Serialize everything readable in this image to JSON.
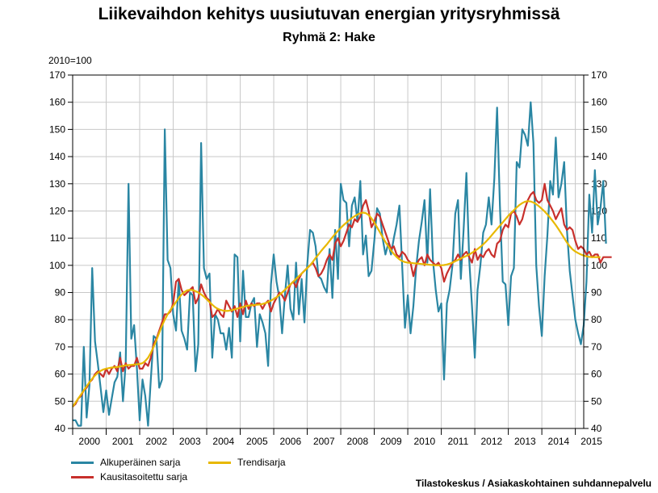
{
  "chart_data": {
    "type": "line",
    "title": "Liikevaihdon kehitys uusiutuvan energian yritysryhmissä",
    "subtitle": "Ryhmä 2: Hake",
    "ylabel": "2010=100",
    "ylim": [
      40,
      170
    ],
    "yticks": [
      "40",
      "50",
      "60",
      "70",
      "80",
      "90",
      "100",
      "110",
      "120",
      "130",
      "140",
      "150",
      "160",
      "170"
    ],
    "xlim": [
      2000,
      2015.25
    ],
    "year_labels": [
      "2000",
      "2001",
      "2002",
      "2003",
      "2004",
      "2005",
      "2006",
      "2007",
      "2008",
      "2009",
      "2010",
      "2011",
      "2012",
      "2013",
      "2014",
      "2015"
    ],
    "grid": true,
    "legend_position": "bottom-left",
    "start": 2000,
    "step": 0.08333,
    "series": [
      {
        "name": "Alkuperäinen sarja",
        "color": "#2a86a3",
        "values": [
          43,
          43,
          41,
          41,
          70,
          44,
          56,
          99,
          72,
          64,
          55,
          46,
          54,
          45,
          51,
          57,
          59,
          68,
          50,
          64,
          130,
          73,
          78,
          62,
          43,
          58,
          52,
          41,
          58,
          74,
          73,
          55,
          58,
          150,
          102,
          99,
          82,
          76,
          95,
          76,
          73,
          69,
          90,
          89,
          61,
          71,
          145,
          99,
          95,
          97,
          66,
          82,
          80,
          75,
          75,
          69,
          77,
          66,
          104,
          103,
          72,
          98,
          81,
          81,
          86,
          88,
          70,
          82,
          79,
          75,
          63,
          93,
          104,
          94,
          88,
          75,
          89,
          100,
          84,
          80,
          101,
          82,
          95,
          79,
          100,
          113,
          112,
          107,
          96,
          95,
          92,
          90,
          106,
          88,
          113,
          95,
          130,
          124,
          123,
          107,
          122,
          125,
          116,
          131,
          104,
          111,
          96,
          98,
          109,
          121,
          119,
          110,
          104,
          108,
          104,
          110,
          115,
          122,
          100,
          77,
          89,
          75,
          85,
          99,
          109,
          116,
          124,
          101,
          128,
          102,
          91,
          83,
          86,
          58,
          86,
          91,
          100,
          119,
          124,
          95,
          113,
          134,
          102,
          85,
          66,
          91,
          100,
          112,
          115,
          125,
          115,
          132,
          158,
          122,
          94,
          93,
          78,
          96,
          99,
          138,
          136,
          150,
          148,
          144,
          160,
          145,
          100,
          85,
          74,
          96,
          111,
          131,
          126,
          147,
          125,
          130,
          138,
          113,
          98,
          89,
          80,
          75,
          71,
          78,
          94,
          126,
          112,
          135,
          115,
          121,
          131,
          108
        ]
      },
      {
        "name": "Kausitasoitettu sarja",
        "color": "#c8302c",
        "values": [
          48,
          49,
          51,
          52,
          54,
          55,
          57,
          58,
          60,
          61,
          60,
          59,
          62,
          60,
          62,
          63,
          61,
          66,
          61,
          64,
          62,
          63,
          63,
          66,
          62,
          62,
          64,
          63,
          66,
          71,
          73,
          76,
          79,
          82,
          82,
          83,
          86,
          94,
          95,
          91,
          89,
          90,
          91,
          92,
          86,
          88,
          93,
          90,
          88,
          87,
          81,
          82,
          84,
          82,
          81,
          87,
          85,
          83,
          85,
          81,
          86,
          82,
          87,
          84,
          86,
          85,
          86,
          86,
          84,
          86,
          87,
          83,
          86,
          88,
          90,
          89,
          87,
          90,
          93,
          94,
          92,
          95,
          97,
          98,
          99,
          100,
          101,
          99,
          96,
          97,
          99,
          102,
          104,
          102,
          108,
          110,
          107,
          109,
          112,
          115,
          114,
          117,
          116,
          118,
          122,
          124,
          120,
          114,
          116,
          119,
          118,
          115,
          112,
          109,
          106,
          107,
          104,
          103,
          105,
          104,
          102,
          101,
          96,
          100,
          102,
          103,
          100,
          104,
          102,
          101,
          100,
          101,
          99,
          94,
          97,
          99,
          101,
          102,
          104,
          102,
          104,
          105,
          103,
          101,
          106,
          102,
          104,
          103,
          105,
          106,
          104,
          103,
          108,
          109,
          113,
          115,
          114,
          119,
          120,
          118,
          115,
          117,
          121,
          124,
          126,
          127,
          124,
          123,
          124,
          130,
          124,
          122,
          120,
          117,
          119,
          121,
          115,
          113,
          114,
          113,
          109,
          106,
          107,
          106,
          104,
          105,
          103,
          104,
          104,
          101,
          103,
          103,
          103,
          103
        ]
      },
      {
        "name": "Trendisarja",
        "color": "#e8b800",
        "values": [
          48,
          49.5,
          51,
          52.5,
          54,
          55.5,
          57,
          58.3,
          59.5,
          60.5,
          61.2,
          61.7,
          62,
          62.2,
          62.4,
          62.5,
          62.6,
          62.8,
          63,
          63.2,
          63.3,
          63.4,
          63.5,
          63.6,
          63.7,
          64,
          64.8,
          66,
          67.8,
          70,
          72.5,
          75.2,
          77.8,
          80,
          82,
          83.6,
          85,
          86.5,
          88,
          89.3,
          90.2,
          90.8,
          91,
          90.9,
          90.5,
          90,
          89.3,
          88.5,
          87.5,
          86.5,
          85.5,
          84.6,
          84,
          83.6,
          83.3,
          83.2,
          83.3,
          83.5,
          83.8,
          84.1,
          84.4,
          84.7,
          85,
          85.2,
          85.3,
          85.4,
          85.5,
          85.6,
          85.8,
          86.1,
          86.5,
          87,
          87.6,
          88.3,
          89.1,
          90,
          91,
          92,
          93,
          94,
          95,
          96,
          97,
          98,
          99,
          100,
          101.3,
          102.7,
          104,
          105.3,
          106.5,
          107.7,
          109,
          110.3,
          111.5,
          112.7,
          113.8,
          114.8,
          115.7,
          116.6,
          117.4,
          118.1,
          118.7,
          119.2,
          119.4,
          119.2,
          118.5,
          117.3,
          115.8,
          114,
          112.2,
          110.4,
          108.6,
          107,
          105.5,
          104.2,
          103.1,
          102.2,
          101.6,
          101.2,
          101,
          100.9,
          100.8,
          100.7,
          100.6,
          100.5,
          100.4,
          100.3,
          100.2,
          100.1,
          100,
          100,
          100,
          100.1,
          100.3,
          100.6,
          101,
          101.5,
          102,
          102.5,
          103,
          103.5,
          104,
          104.6,
          105.3,
          106,
          106.8,
          107.7,
          108.7,
          109.8,
          111,
          112.2,
          113.4,
          114.6,
          115.8,
          117,
          118.2,
          119.3,
          120.3,
          121.3,
          122.2,
          122.9,
          123.4,
          123.6,
          123.5,
          123.1,
          122.5,
          121.7,
          120.8,
          119.8,
          118.7,
          117.5,
          116.2,
          114.8,
          113.3,
          111.7,
          110,
          108.4,
          107,
          105.9,
          105.1,
          104.5,
          104,
          103.6,
          103.3,
          103.1,
          103,
          103,
          103,
          103
        ]
      }
    ]
  },
  "legend": {
    "items": [
      {
        "label": "Alkuperäinen sarja",
        "color": "#2a86a3"
      },
      {
        "label": "Trendisarja",
        "color": "#e8b800"
      },
      {
        "label": "Kausitasoitettu sarja",
        "color": "#c8302c"
      }
    ]
  },
  "source": "Tilastokeskus / Asiakaskohtainen suhdannepalvelu"
}
